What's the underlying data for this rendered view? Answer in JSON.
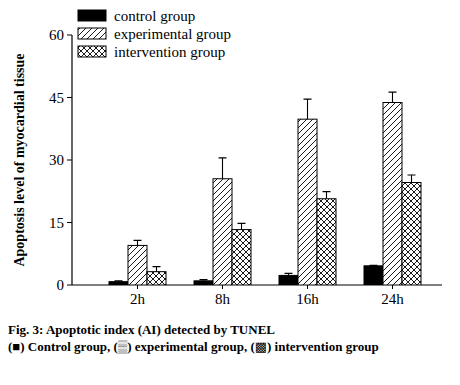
{
  "chart_data": {
    "type": "bar",
    "title": "Fig. 3: Apoptotic index (AI) detected by TUNEL",
    "subtitle": "(■) Control group, (▒) experimental group, (▩) intervention group",
    "y_label": "Apoptosis level of myocardial tissue",
    "categories": [
      "2h",
      "8h",
      "16h",
      "24h"
    ],
    "series": [
      {
        "name": "control group",
        "color": "#000000",
        "values": [
          0.8,
          1.0,
          2.3,
          4.6
        ],
        "errors": [
          0.2,
          0.3,
          0.5,
          0.1
        ]
      },
      {
        "name": "experimental group",
        "color": "#000000",
        "values": [
          9.5,
          25.5,
          39.8,
          43.8
        ],
        "errors": [
          1.2,
          5.0,
          4.8,
          2.5
        ]
      },
      {
        "name": "intervention group",
        "color": "#000000",
        "values": [
          3.2,
          13.3,
          20.7,
          24.6
        ],
        "errors": [
          1.2,
          1.5,
          1.7,
          1.8
        ]
      }
    ],
    "ylim": [
      0,
      60
    ],
    "yticks": [
      0,
      15,
      30,
      45,
      60
    ],
    "legend": "upper left",
    "grid": false
  }
}
